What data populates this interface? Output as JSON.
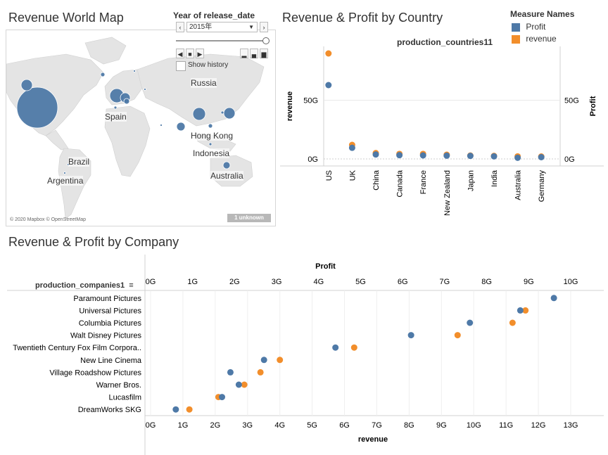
{
  "map": {
    "title": "Revenue World Map",
    "filter_label": "Year of release_date",
    "year_value": "2015年",
    "show_history": "Show history",
    "attribution": "© 2020 Mapbox © OpenStreetMap",
    "unknown_badge": "1 unknown",
    "place_labels": [
      "Russia",
      "Spain",
      "Hong Kong",
      "Indonesia",
      "Brazil",
      "Argentina",
      "Australia"
    ],
    "colors": {
      "water": "#ffffff",
      "land": "#e4e4e4",
      "bubble": "#4e79a7"
    }
  },
  "legend": {
    "title": "Measure Names",
    "items": [
      {
        "label": "Profit",
        "color": "#4e79a7"
      },
      {
        "label": "revenue",
        "color": "#f28e2b"
      }
    ]
  },
  "country_chart": {
    "title": "Revenue & Profit by Country",
    "header": "production_countries11",
    "left_axis_label": "revenue",
    "right_axis_label": "Profit",
    "left_ticks": [
      "50G",
      "0G"
    ],
    "right_ticks": [
      "50G",
      "0G"
    ]
  },
  "company_chart": {
    "title": "Revenue & Profit by Company",
    "header": "production_companies1",
    "top_axis_label": "Profit",
    "bottom_axis_label": "revenue",
    "top_ticks": [
      "0G",
      "1G",
      "2G",
      "3G",
      "4G",
      "5G",
      "6G",
      "7G",
      "8G",
      "9G",
      "10G"
    ],
    "bottom_ticks": [
      "0G",
      "1G",
      "2G",
      "3G",
      "4G",
      "5G",
      "6G",
      "7G",
      "8G",
      "9G",
      "10G",
      "11G",
      "12G",
      "13G"
    ]
  },
  "chart_data": [
    {
      "type": "scatter",
      "title": "Revenue & Profit by Country",
      "categories": [
        "US",
        "UK",
        "China",
        "Canada",
        "France",
        "New Zealand",
        "Japan",
        "India",
        "Australia",
        "Germany"
      ],
      "series": [
        {
          "name": "Profit",
          "axis": "Profit",
          "values": [
            63,
            9.5,
            3.8,
            3.2,
            3,
            2.8,
            2.6,
            2.2,
            1,
            1.5
          ]
        },
        {
          "name": "revenue",
          "axis": "revenue",
          "values": [
            90,
            12,
            5,
            4.3,
            4.3,
            3.6,
            2.9,
            2.6,
            2.2,
            2.1
          ]
        }
      ],
      "xlabel": "production_countries11",
      "ylabel": "revenue",
      "y2label": "Profit",
      "ylim": [
        0,
        96
      ]
    },
    {
      "type": "scatter",
      "title": "Revenue & Profit by Company",
      "categories": [
        "Paramount Pictures",
        "Universal Pictures",
        "Columbia Pictures",
        "Walt Disney Pictures",
        "Twentieth Century Fox Film Corpora..",
        "New Line Cinema",
        "Village Roadshow Pictures",
        "Warner Bros.",
        "Lucasfilm",
        "DreamWorks SKG"
      ],
      "series": [
        {
          "name": "Profit",
          "axis": "Profit",
          "xlim": [
            0,
            10
          ],
          "values": [
            9.6,
            8.8,
            7.6,
            6.2,
            4.4,
            2.7,
            1.9,
            2.1,
            1.7,
            0.6
          ]
        },
        {
          "name": "revenue",
          "axis": "revenue",
          "xlim": [
            0,
            13
          ],
          "values": [
            null,
            11.6,
            11.2,
            9.5,
            6.3,
            4.0,
            3.4,
            2.9,
            2.1,
            1.2
          ]
        }
      ],
      "xlabel": "revenue",
      "x2label": "Profit",
      "ylabel": "production_companies1"
    }
  ]
}
